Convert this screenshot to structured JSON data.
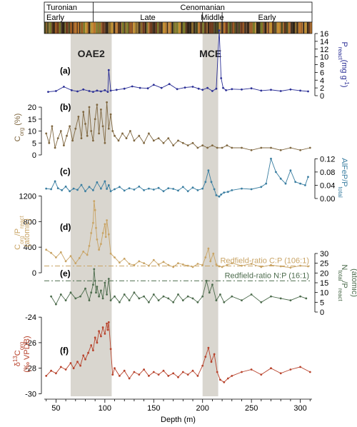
{
  "chart_data": {
    "type": "line",
    "xlabel": "Depth (m)",
    "xlim": [
      38,
      312
    ],
    "xticks": [
      50,
      100,
      150,
      200,
      250,
      300
    ],
    "stages": [
      {
        "name": "Turonian",
        "from": 38,
        "to": 88
      },
      {
        "name": "Cenomanian",
        "from": 88,
        "to": 312
      }
    ],
    "substages": [
      {
        "name": "Early",
        "from": 38,
        "to": 88
      },
      {
        "name": "Late",
        "from": 88,
        "to": 200
      },
      {
        "name": "Middle",
        "from": 200,
        "to": 220
      },
      {
        "name": "Early",
        "from": 220,
        "to": 312
      }
    ],
    "events": [
      {
        "name": "OAE2",
        "from": 65,
        "to": 107
      },
      {
        "name": "MCE",
        "from": 200,
        "to": 216
      }
    ],
    "panels": [
      {
        "id": "a",
        "label": "(a)",
        "axis_side": "right",
        "ylabel_main": "P",
        "ylabel_sub": "react",
        "ylabel_tail": "(mg g",
        "ylabel_sup": "-1",
        "ylabel_end": ")",
        "ylim": [
          0,
          16
        ],
        "yticks": [
          0,
          2,
          4,
          6,
          8,
          10,
          12,
          14,
          16
        ],
        "color": "#2b2f96",
        "series": {
          "x": [
            42,
            50,
            58,
            66,
            72,
            78,
            84,
            88,
            92,
            96,
            100,
            103,
            104,
            106,
            112,
            120,
            128,
            136,
            144,
            150,
            158,
            166,
            174,
            182,
            190,
            196,
            200,
            205,
            210,
            214,
            217,
            219,
            221,
            224,
            230,
            240,
            250,
            260,
            270,
            280,
            290,
            300,
            308
          ],
          "y": [
            1.0,
            1.2,
            2.3,
            1.4,
            1.1,
            1.6,
            1.2,
            1.0,
            1.3,
            1.1,
            1.4,
            1.0,
            6.6,
            1.3,
            1.5,
            1.8,
            2.4,
            2.0,
            1.9,
            2.8,
            2.0,
            3.0,
            1.7,
            2.1,
            2.3,
            1.8,
            1.5,
            2.0,
            1.2,
            1.8,
            16.8,
            4.5,
            2.0,
            1.4,
            1.7,
            1.6,
            1.9,
            1.3,
            1.5,
            1.2,
            1.6,
            1.3,
            1.1
          ]
        }
      },
      {
        "id": "b",
        "label": "(b)",
        "axis_side": "left",
        "ylabel_main": "C",
        "ylabel_sub": "org",
        "ylabel_tail": " (%)",
        "ylim": [
          0,
          23
        ],
        "yticks": [
          0,
          5,
          10,
          15,
          20
        ],
        "color": "#7f6740",
        "series": {
          "x": [
            40,
            43,
            46,
            49,
            52,
            55,
            58,
            61,
            64,
            67,
            70,
            73,
            76,
            78,
            80,
            82,
            84,
            86,
            88,
            90,
            92,
            94,
            96,
            98,
            100,
            102,
            104,
            106,
            108,
            110,
            114,
            118,
            122,
            126,
            130,
            135,
            140,
            145,
            150,
            155,
            160,
            165,
            170,
            175,
            180,
            185,
            190,
            195,
            200,
            205,
            210,
            215,
            220,
            225,
            230,
            240,
            250,
            260,
            270,
            280,
            290,
            300,
            310
          ],
          "y": [
            9,
            5,
            12,
            3,
            7,
            10,
            4,
            8,
            12,
            6,
            11,
            16,
            7,
            18,
            13,
            8,
            20,
            10,
            6,
            15,
            21,
            9,
            19,
            12,
            5,
            22,
            11,
            17,
            10,
            8,
            6,
            9,
            7,
            10,
            6,
            8,
            5,
            9,
            6,
            7,
            5,
            7,
            4,
            6,
            5,
            4,
            5,
            3,
            4,
            3,
            4,
            3,
            3,
            4,
            3,
            3,
            2,
            3,
            3,
            2,
            3,
            2,
            3
          ]
        }
      },
      {
        "id": "c",
        "label": "(c)",
        "axis_side": "right",
        "ylabel_main": "AlFeP/P",
        "ylabel_sub": "total",
        "ylabel_tail": "",
        "ylim": [
          0,
          0.125
        ],
        "yticks": [
          0.0,
          0.04,
          0.08,
          0.12
        ],
        "ytick_labels": [
          "0.00",
          "0.04",
          "0.08",
          "0.12"
        ],
        "color": "#3a7ea1",
        "series": {
          "x": [
            40,
            45,
            49,
            52,
            56,
            60,
            64,
            68,
            72,
            76,
            80,
            84,
            88,
            92,
            96,
            100,
            102,
            104,
            106,
            110,
            115,
            120,
            125,
            130,
            135,
            140,
            145,
            150,
            155,
            160,
            165,
            170,
            175,
            180,
            185,
            190,
            195,
            200,
            203,
            206,
            209,
            212,
            214,
            217,
            219,
            222,
            226,
            230,
            240,
            250,
            260,
            265,
            270,
            275,
            280,
            285,
            290,
            295,
            300,
            305,
            308
          ],
          "y": [
            0.03,
            0.028,
            0.052,
            0.031,
            0.025,
            0.036,
            0.022,
            0.03,
            0.026,
            0.041,
            0.022,
            0.035,
            0.025,
            0.049,
            0.03,
            0.052,
            0.029,
            0.04,
            0.022,
            0.028,
            0.035,
            0.024,
            0.031,
            0.027,
            0.036,
            0.025,
            0.03,
            0.027,
            0.032,
            0.022,
            0.031,
            0.029,
            0.024,
            0.035,
            0.022,
            0.033,
            0.025,
            0.03,
            0.05,
            0.085,
            0.05,
            0.028,
            0.01,
            0.006,
            0.012,
            0.018,
            0.02,
            0.025,
            0.03,
            0.028,
            0.035,
            0.045,
            0.12,
            0.08,
            0.06,
            0.045,
            0.085,
            0.05,
            0.045,
            0.04,
            0.065
          ]
        }
      },
      {
        "id": "d",
        "label": "(d)",
        "axis_side": "left",
        "ylabel_main": "C",
        "ylabel_sub": "org",
        "ylabel_tail": "/P",
        "ylabel_sub2": "react",
        "ylabel_line2": "(atomic)",
        "ylim": [
          0,
          1250
        ],
        "yticks": [
          0,
          400,
          800,
          1200
        ],
        "color": "#c9a465",
        "ref_value": 106,
        "ref_label": "Redfield-ratio C:P (106:1)",
        "series": {
          "x": [
            40,
            45,
            50,
            55,
            60,
            65,
            70,
            74,
            78,
            82,
            84,
            86,
            88,
            89,
            90,
            91,
            92,
            94,
            96,
            98,
            100,
            101,
            102,
            104,
            106,
            110,
            115,
            120,
            125,
            130,
            135,
            140,
            145,
            150,
            155,
            160,
            165,
            170,
            175,
            180,
            185,
            190,
            195,
            200,
            203,
            206,
            208,
            211,
            214,
            217,
            220,
            225,
            230,
            240,
            250,
            260,
            270,
            280,
            290,
            300,
            308
          ],
          "y": [
            360,
            310,
            240,
            320,
            180,
            260,
            150,
            230,
            330,
            280,
            420,
            620,
            780,
            1120,
            980,
            700,
            520,
            360,
            450,
            620,
            760,
            560,
            820,
            600,
            300,
            240,
            160,
            220,
            140,
            120,
            180,
            150,
            110,
            200,
            130,
            170,
            120,
            90,
            150,
            130,
            110,
            90,
            140,
            120,
            240,
            380,
            180,
            300,
            130,
            100,
            90,
            120,
            150,
            110,
            140,
            90,
            120,
            100,
            80,
            110,
            100
          ]
        }
      },
      {
        "id": "e",
        "label": "(e)",
        "axis_side": "right",
        "ylabel_main": "N",
        "ylabel_sub": "total",
        "ylabel_tail": "/P",
        "ylabel_sub2": "react",
        "ylabel_line2": "(atomic)",
        "ylim": [
          0,
          30
        ],
        "yticks": [
          0,
          5,
          10,
          15,
          20,
          25,
          30
        ],
        "color": "#4d6c4d",
        "ref_value": 16,
        "ref_label": "Redfield-ratio N:P (16:1)",
        "series": {
          "x": [
            45,
            50,
            55,
            60,
            65,
            70,
            75,
            80,
            84,
            86,
            88,
            89,
            90,
            91,
            92,
            94,
            96,
            98,
            100,
            102,
            104,
            106,
            110,
            115,
            120,
            125,
            130,
            135,
            140,
            145,
            150,
            155,
            160,
            165,
            170,
            175,
            180,
            185,
            190,
            195,
            200,
            204,
            207,
            210,
            214,
            218,
            222,
            230,
            240,
            250,
            260,
            270,
            280,
            290,
            300,
            306
          ],
          "y": [
            8,
            4,
            9,
            6,
            10,
            7,
            8,
            12,
            6,
            10,
            14,
            22,
            16,
            10,
            13,
            8,
            11,
            7,
            15,
            9,
            17,
            6,
            8,
            5,
            9,
            6,
            10,
            7,
            8,
            5,
            9,
            6,
            8,
            7,
            5,
            9,
            6,
            8,
            7,
            5,
            8,
            16,
            10,
            14,
            6,
            9,
            5,
            8,
            6,
            9,
            5,
            8,
            7,
            6,
            8,
            7
          ]
        }
      },
      {
        "id": "f",
        "label": "(f)",
        "axis_side": "left",
        "ylabel_main": "δ",
        "ylabel_sup": "13",
        "ylabel_tail": "C",
        "ylabel_sub": "org",
        "ylabel_line2": "(‰ VPDB)",
        "ylim": [
          -30.2,
          -23.6
        ],
        "yticks": [
          -30,
          -28,
          -26,
          -24
        ],
        "color": "#b8432c",
        "series": {
          "x": [
            40,
            45,
            50,
            55,
            60,
            65,
            68,
            72,
            75,
            78,
            80,
            83,
            86,
            88,
            90,
            92,
            94,
            96,
            98,
            100,
            102,
            103,
            104,
            106,
            108,
            110,
            115,
            120,
            125,
            130,
            135,
            140,
            145,
            150,
            155,
            160,
            165,
            170,
            175,
            180,
            185,
            190,
            195,
            200,
            203,
            206,
            209,
            212,
            215,
            218,
            222,
            226,
            230,
            240,
            250,
            260,
            270,
            280,
            290,
            300,
            310
          ],
          "y": [
            -28.6,
            -28.2,
            -28.4,
            -27.9,
            -28.1,
            -27.6,
            -28.0,
            -27.5,
            -27.8,
            -27.0,
            -27.3,
            -26.8,
            -26.2,
            -26.6,
            -25.6,
            -26.0,
            -25.1,
            -25.5,
            -24.8,
            -25.3,
            -24.5,
            -25.0,
            -24.4,
            -26.5,
            -28.5,
            -28.0,
            -28.6,
            -28.2,
            -28.8,
            -28.3,
            -28.5,
            -28.1,
            -28.6,
            -28.3,
            -28.5,
            -28.2,
            -28.6,
            -28.4,
            -28.7,
            -28.3,
            -28.5,
            -28.2,
            -28.6,
            -27.8,
            -27.1,
            -26.4,
            -27.5,
            -26.9,
            -28.3,
            -28.9,
            -29.1,
            -28.8,
            -28.6,
            -28.3,
            -28.1,
            -28.5,
            -28.0,
            -28.4,
            -28.1,
            -27.9,
            -28.3
          ]
        }
      }
    ]
  }
}
